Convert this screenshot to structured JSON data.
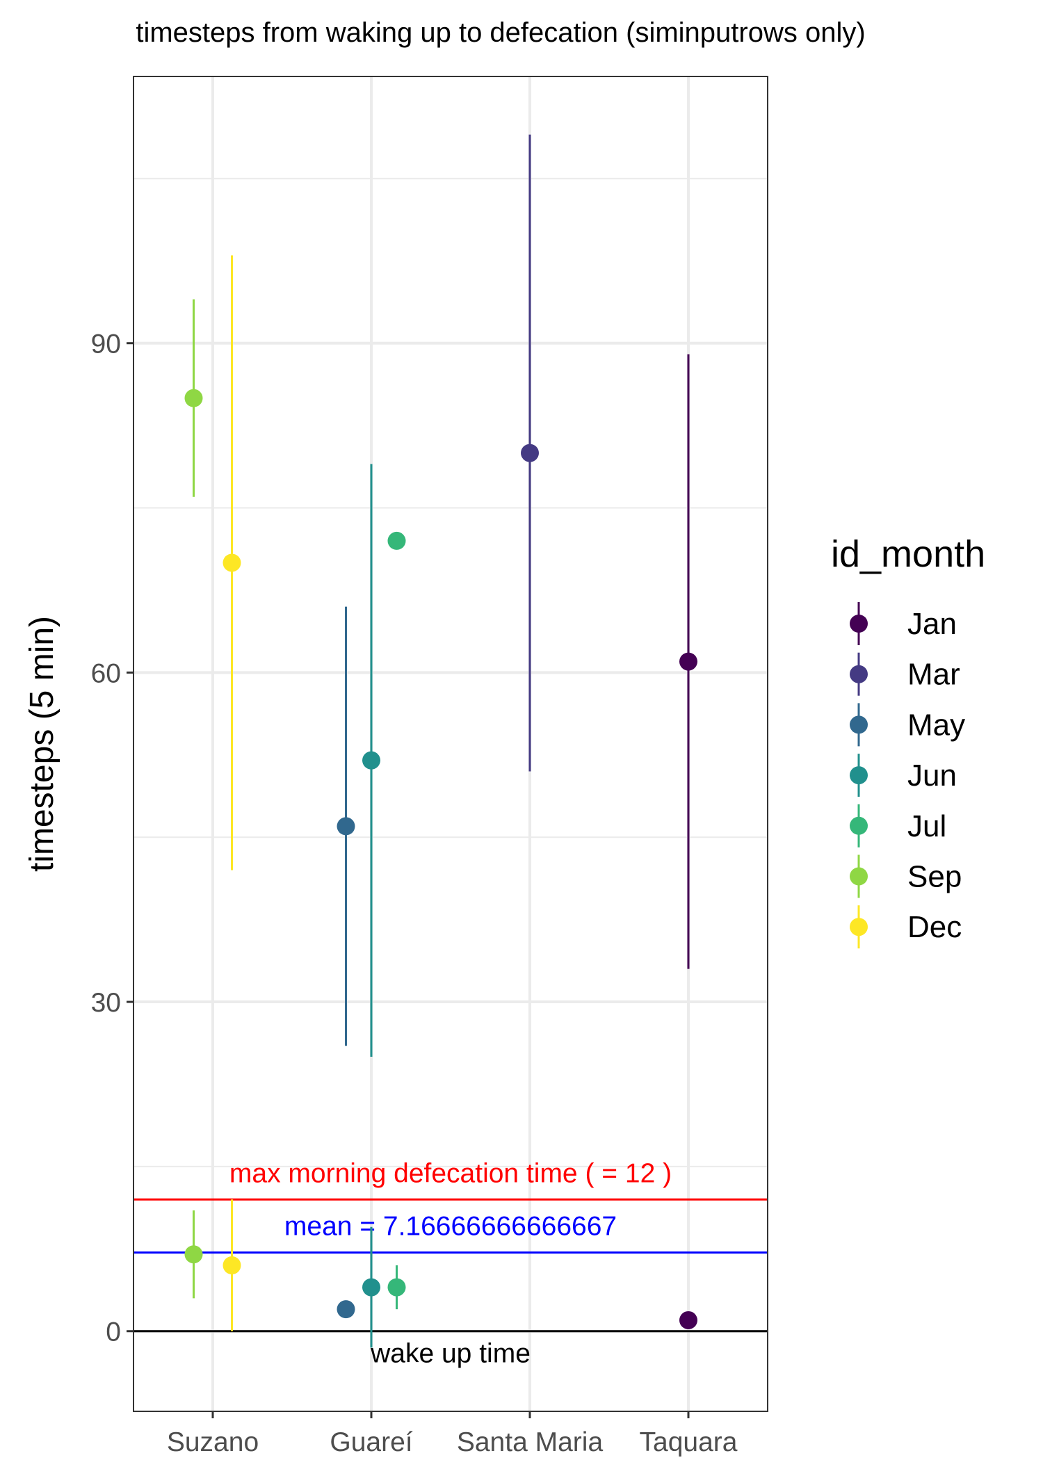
{
  "chart_data": {
    "type": "scatter",
    "title": "timesteps from waking up to defecation (siminputrows only)",
    "xlabel": "",
    "ylabel": "timesteps (5 min)",
    "categories": [
      "Suzano",
      "Guareí",
      "Santa Maria",
      "Taquara"
    ],
    "ylim": [
      -7.3,
      114.3
    ],
    "yticks": [
      0,
      30,
      60,
      90
    ],
    "grid": true,
    "legend": {
      "title": "id_month",
      "placement": "right",
      "entries": [
        "Jan",
        "Mar",
        "May",
        "Jun",
        "Jul",
        "Sep",
        "Dec"
      ]
    },
    "colors": {
      "Jan": "#440154",
      "Mar": "#443a83",
      "May": "#31688e",
      "Jun": "#21908d",
      "Jul": "#35b779",
      "Sep": "#8fd744",
      "Dec": "#fde725"
    },
    "series": [
      {
        "name": "Jan",
        "points": [
          {
            "category": "Taquara",
            "y": 61,
            "lo": 33,
            "hi": 89
          },
          {
            "category": "Taquara",
            "y": 1,
            "lo": 1,
            "hi": 1
          }
        ]
      },
      {
        "name": "Mar",
        "points": [
          {
            "category": "Santa Maria",
            "y": 80,
            "lo": 51,
            "hi": 109
          }
        ]
      },
      {
        "name": "May",
        "points": [
          {
            "category": "Guareí",
            "y": 46,
            "lo": 26,
            "hi": 66
          },
          {
            "category": "Guareí",
            "y": 2,
            "lo": 2,
            "hi": 2
          }
        ]
      },
      {
        "name": "Jun",
        "points": [
          {
            "category": "Guareí",
            "y": 52,
            "lo": 25,
            "hi": 79
          },
          {
            "category": "Guareí",
            "y": 4,
            "lo": -1.5,
            "hi": 9.5
          }
        ]
      },
      {
        "name": "Jul",
        "points": [
          {
            "category": "Guareí",
            "y": 72,
            "lo": 72,
            "hi": 72
          },
          {
            "category": "Guareí",
            "y": 4,
            "lo": 2,
            "hi": 6
          }
        ]
      },
      {
        "name": "Sep",
        "points": [
          {
            "category": "Suzano",
            "y": 85,
            "lo": 76,
            "hi": 94
          },
          {
            "category": "Suzano",
            "y": 7,
            "lo": 3,
            "hi": 11
          }
        ]
      },
      {
        "name": "Dec",
        "points": [
          {
            "category": "Suzano",
            "y": 70,
            "lo": 42,
            "hi": 98
          },
          {
            "category": "Suzano",
            "y": 6,
            "lo": 0,
            "hi": 12
          }
        ]
      }
    ],
    "reference_lines": [
      {
        "y": 12,
        "color": "#ff0000",
        "label": "max morning defecation time ( =  12 )"
      },
      {
        "y": 7.16666666666667,
        "color": "#0000ff",
        "label": "mean = 7.16666666666667"
      },
      {
        "y": 0,
        "color": "#000000",
        "label": "wake up time"
      }
    ]
  }
}
